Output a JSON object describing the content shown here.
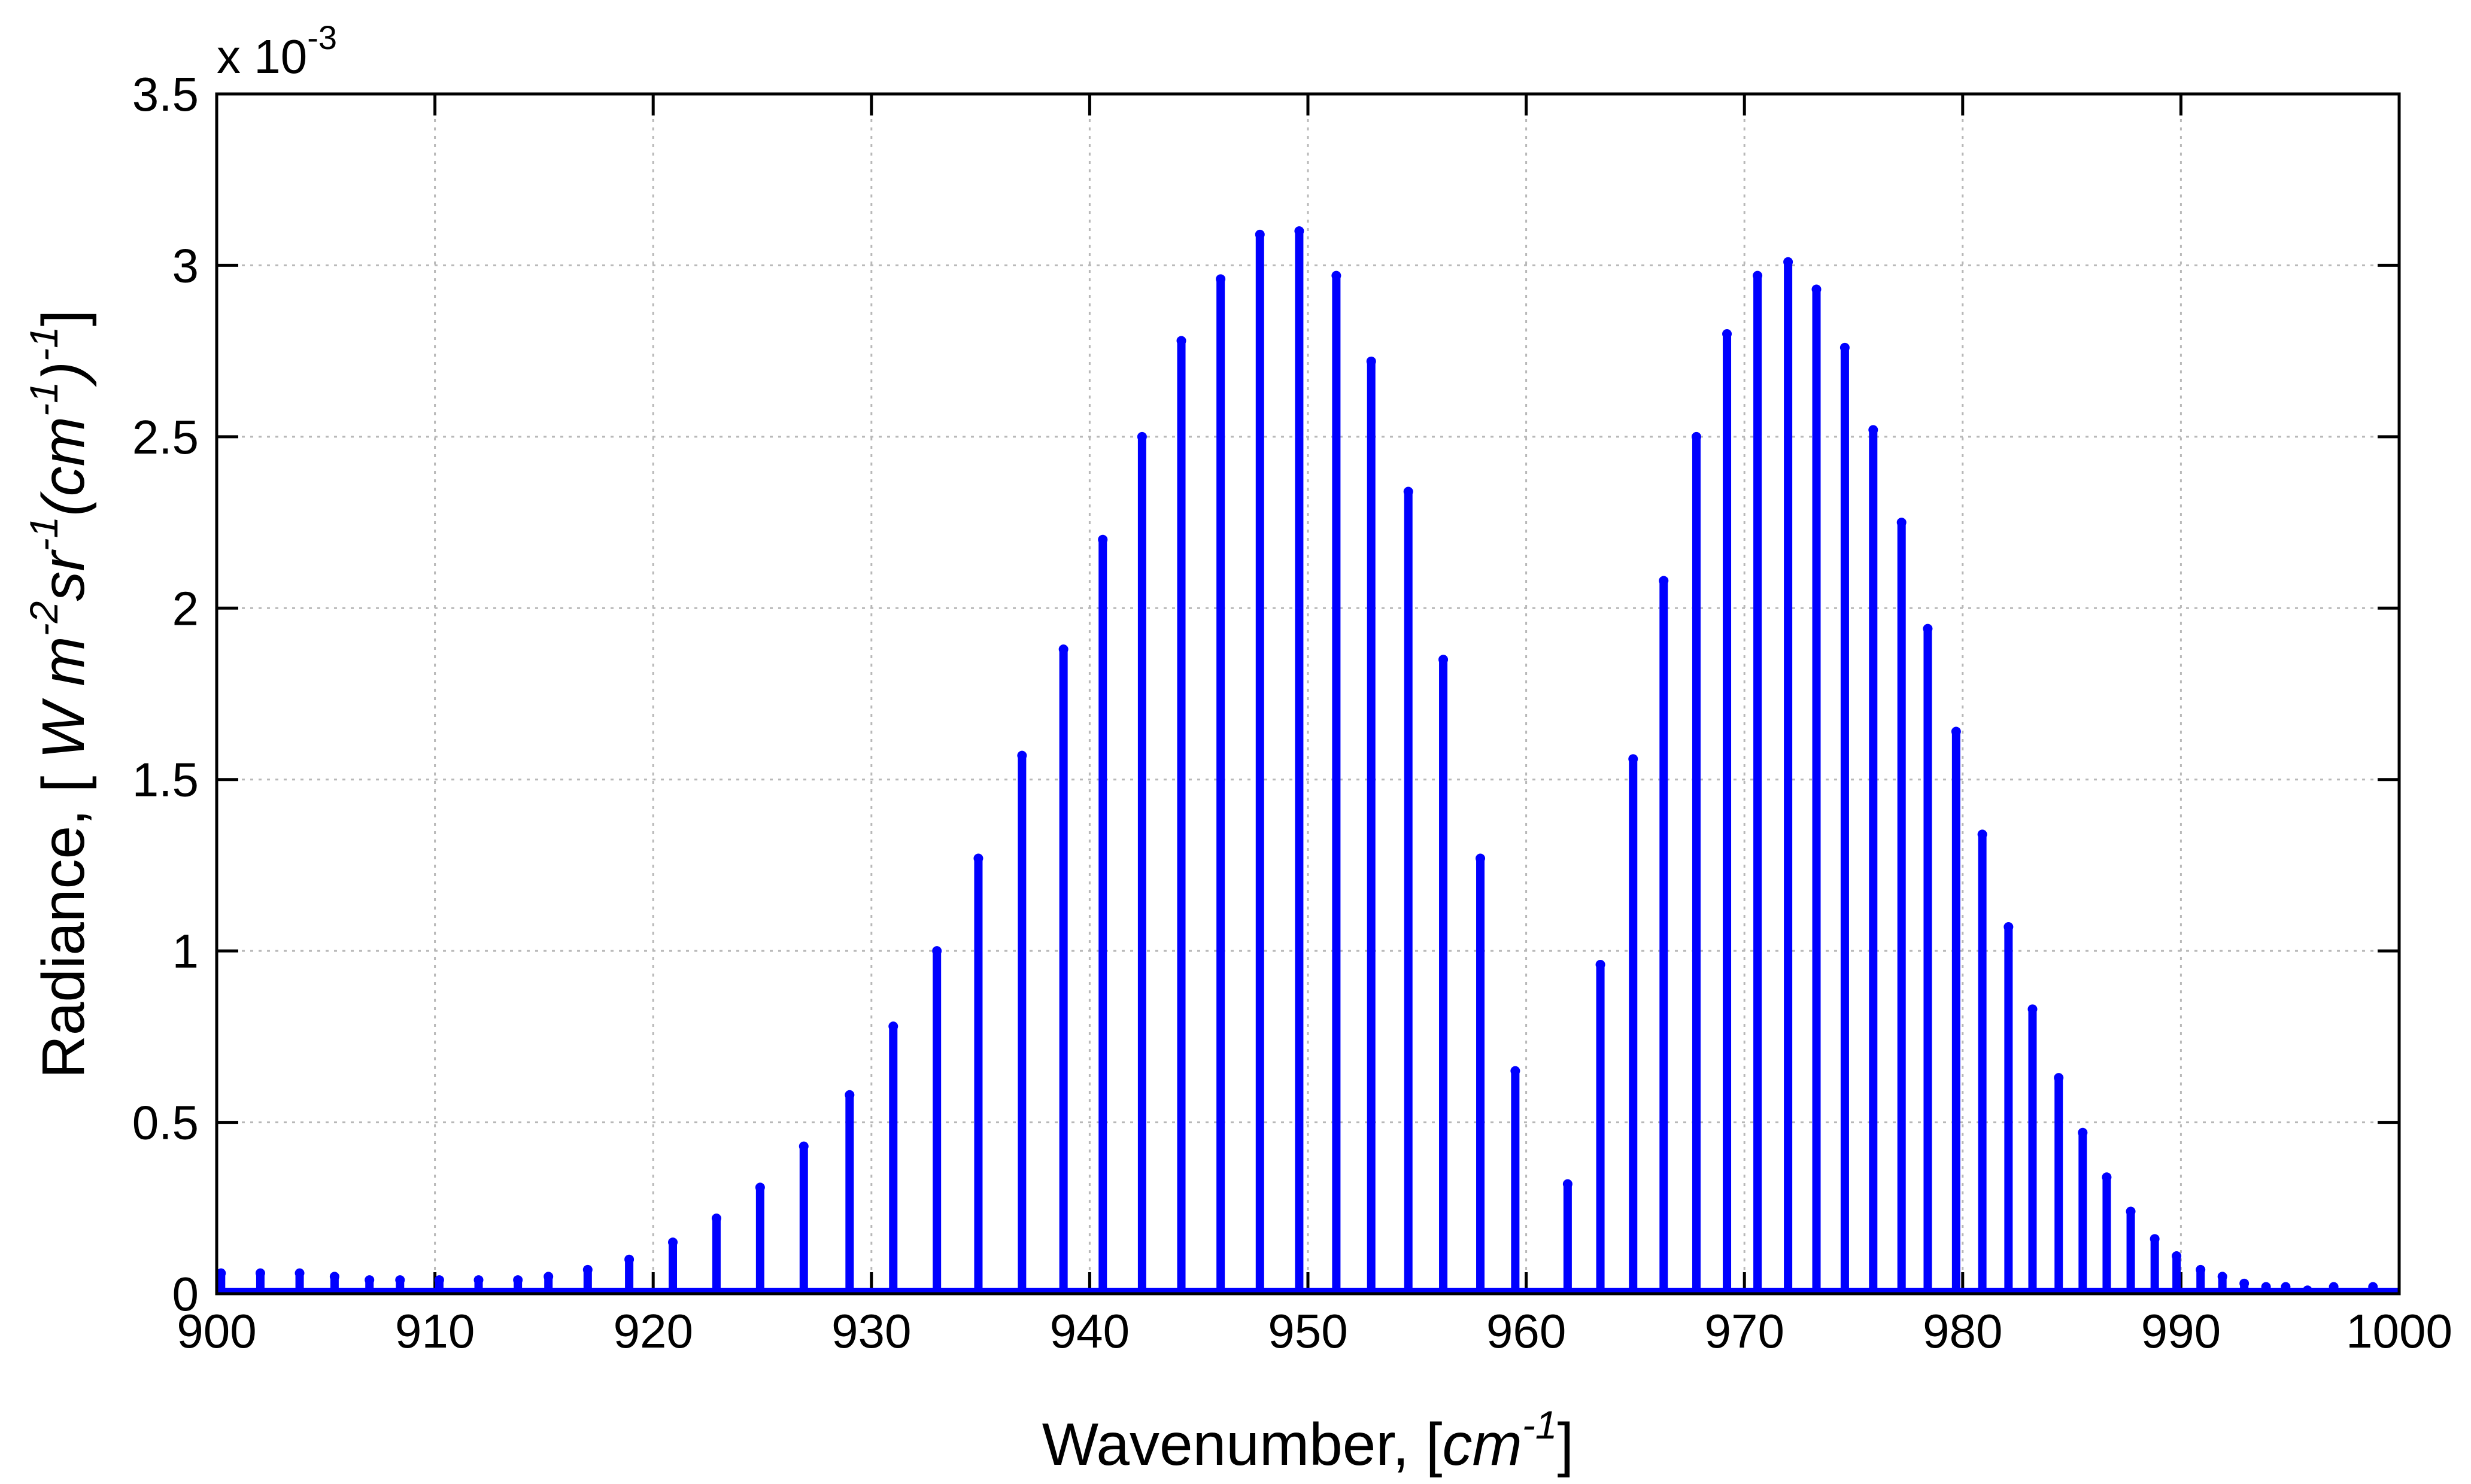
{
  "chart_data": {
    "type": "line",
    "title": "",
    "xlabel": "Wavenumber, [cm⁻¹]",
    "ylabel": "Radiance, [ W m⁻²sr⁻¹(cm⁻¹)⁻¹]",
    "xlabel_parts": {
      "prefix": "Wavenumber, [",
      "unit": "cm",
      "exponent": "-1",
      "suffix": "]"
    },
    "ylabel_parts": {
      "prefix": "Radiance, [ ",
      "w": "W m",
      "e1": "-2",
      "sr": "sr",
      "e2": "-1",
      "cm": "(cm",
      "e3": "-1",
      "close": ")",
      "e4": "-1",
      "suffix": "]"
    },
    "exponent_label": {
      "base": "x 10",
      "power": "-3"
    },
    "xlim": [
      900,
      1000
    ],
    "ylim": [
      0,
      3.5
    ],
    "y_scale_multiplier": 0.001,
    "x_ticks": [
      "900",
      "910",
      "920",
      "930",
      "940",
      "950",
      "960",
      "970",
      "980",
      "990",
      "1000"
    ],
    "y_ticks": [
      "0",
      "0.5",
      "1",
      "1.5",
      "2",
      "2.5",
      "3",
      "3.5"
    ],
    "grid": true,
    "series_color": "#0000ff",
    "series": [
      {
        "x": [
          900.2,
          902.0,
          903.8,
          905.4,
          907.0,
          908.4,
          910.2,
          912.0,
          913.8,
          915.2,
          917.0,
          918.9,
          920.9,
          922.9,
          924.9,
          926.9,
          929.0,
          931.0,
          933.0,
          934.9,
          936.9,
          938.8,
          940.6,
          942.4,
          944.2,
          946.0,
          947.8,
          949.6,
          951.3,
          952.9,
          954.6,
          956.2,
          957.9,
          959.5,
          961.9,
          963.4,
          964.9,
          966.3,
          967.8,
          969.2,
          970.6,
          972.0,
          973.3,
          974.6,
          975.9,
          977.2,
          978.4,
          979.7,
          980.9,
          982.1,
          983.2,
          984.4,
          985.5,
          986.6,
          987.7,
          988.8,
          989.8,
          990.9,
          991.9,
          992.9,
          993.9,
          994.8,
          995.8,
          997.0,
          998.8
        ],
        "values": [
          0.06,
          0.06,
          0.06,
          0.05,
          0.04,
          0.04,
          0.04,
          0.04,
          0.04,
          0.05,
          0.07,
          0.1,
          0.15,
          0.22,
          0.31,
          0.43,
          0.58,
          0.78,
          1.0,
          1.27,
          1.57,
          1.88,
          2.2,
          2.5,
          2.78,
          2.96,
          3.09,
          3.1,
          2.97,
          2.72,
          2.34,
          1.85,
          1.27,
          0.65,
          0.32,
          0.96,
          1.56,
          2.08,
          2.5,
          2.8,
          2.97,
          3.01,
          2.93,
          2.76,
          2.52,
          2.25,
          1.94,
          1.64,
          1.34,
          1.07,
          0.83,
          0.63,
          0.47,
          0.34,
          0.24,
          0.16,
          0.11,
          0.07,
          0.05,
          0.03,
          0.02,
          0.02,
          0.01,
          0.02,
          0.02
        ]
      }
    ]
  }
}
